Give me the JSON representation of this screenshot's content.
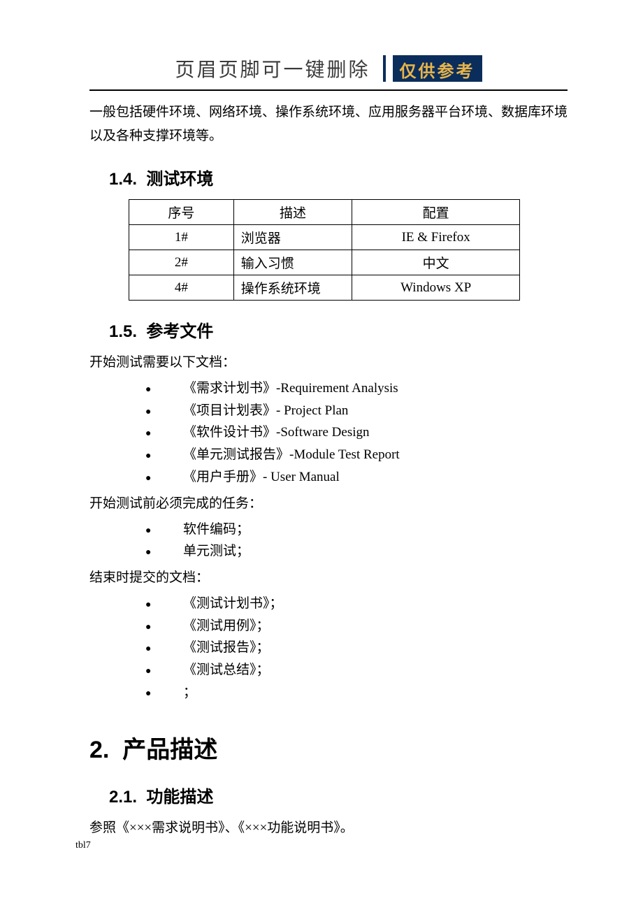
{
  "header": {
    "text": "页眉页脚可一键删除",
    "badge": "仅供参考"
  },
  "intro_paragraph": "一般包括硬件环境、网络环境、操作系统环境、应用服务器平台环境、数据库环境以及各种支撑环境等。",
  "sec_1_4": {
    "number": "1.4.",
    "title": "测试环境",
    "table": {
      "columns": [
        "序号",
        "描述",
        "配置"
      ],
      "rows": [
        {
          "no": "1#",
          "desc": "浏览器",
          "conf": "IE & Firefox"
        },
        {
          "no": "2#",
          "desc": "输入习惯",
          "conf": "中文"
        },
        {
          "no": "4#",
          "desc": "操作系统环境",
          "conf": "Windows XP"
        }
      ]
    }
  },
  "sec_1_5": {
    "number": "1.5.",
    "title": "参考文件",
    "lead1": "开始测试需要以下文档：",
    "docs1": [
      "《需求计划书》-Requirement Analysis",
      "《项目计划表》- Project Plan",
      "《软件设计书》-Software Design",
      "《单元测试报告》-Module Test Report",
      "《用户手册》- User Manual"
    ],
    "lead2": "开始测试前必须完成的任务：",
    "docs2": [
      "软件编码；",
      "单元测试；"
    ],
    "lead3": "结束时提交的文档：",
    "docs3": [
      "《测试计划书》；",
      "《测试用例》；",
      "《测试报告》；",
      "《测试总结》；",
      "；"
    ]
  },
  "chap_2": {
    "number": "2.",
    "title": "产品描述"
  },
  "sec_2_1": {
    "number": "2.1.",
    "title": "功能描述",
    "body": "参照《×××需求说明书》、《×××功能说明书》。"
  },
  "footer": "tbl7"
}
